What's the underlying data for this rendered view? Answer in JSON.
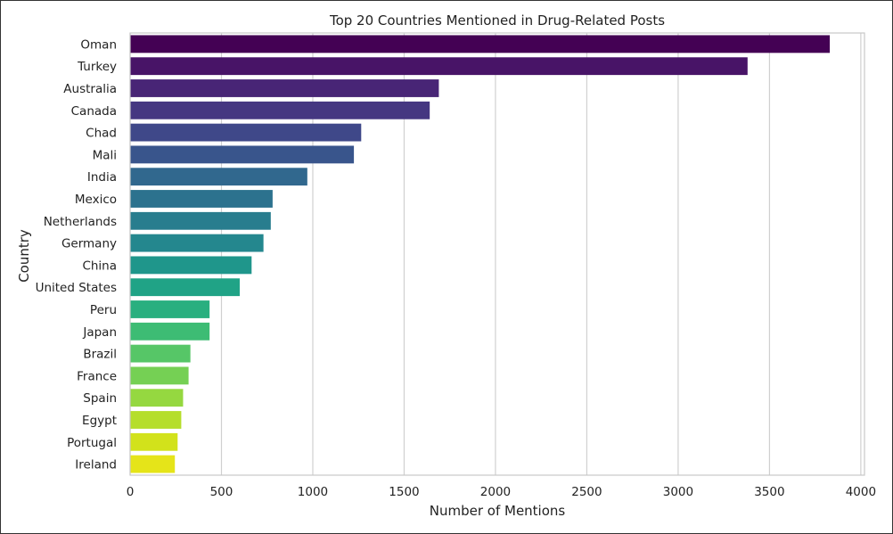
{
  "chart_data": {
    "type": "bar",
    "orientation": "horizontal",
    "title": "Top 20 Countries Mentioned in Drug-Related Posts",
    "xlabel": "Number of Mentions",
    "ylabel": "Country",
    "xlim": [
      0,
      4020
    ],
    "xticks": [
      0,
      500,
      1000,
      1500,
      2000,
      2500,
      3000,
      3500,
      4000
    ],
    "grid": "vertical",
    "categories": [
      "Oman",
      "Turkey",
      "Australia",
      "Canada",
      "Chad",
      "Mali",
      "India",
      "Mexico",
      "Netherlands",
      "Germany",
      "China",
      "United States",
      "Peru",
      "Japan",
      "Brazil",
      "France",
      "Spain",
      "Egypt",
      "Portugal",
      "Ireland"
    ],
    "values": [
      3830,
      3380,
      1690,
      1640,
      1265,
      1225,
      970,
      780,
      770,
      730,
      665,
      600,
      435,
      435,
      330,
      320,
      290,
      280,
      260,
      245
    ],
    "colors": [
      "#440154",
      "#481467",
      "#482576",
      "#453781",
      "#3f4889",
      "#39558c",
      "#31688e",
      "#2c728e",
      "#287d8e",
      "#24878e",
      "#1f968b",
      "#20a386",
      "#29af7f",
      "#3dbc74",
      "#56c667",
      "#75d054",
      "#95d840",
      "#b5de2b",
      "#d2e21b",
      "#e5e419"
    ]
  }
}
